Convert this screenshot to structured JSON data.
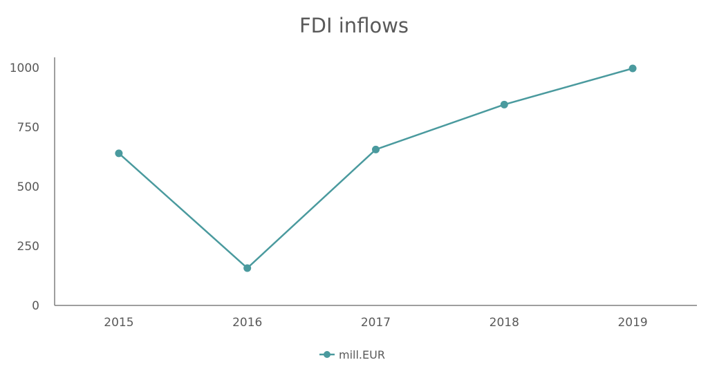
{
  "chart_data": {
    "type": "line",
    "title": "FDI inflows",
    "xlabel": "",
    "ylabel": "",
    "categories": [
      "2015",
      "2016",
      "2017",
      "2018",
      "2019"
    ],
    "series": [
      {
        "name": "mill.EUR",
        "values": [
          640,
          157,
          656,
          845,
          997
        ],
        "color": "#4A9A9E"
      }
    ],
    "ylim": [
      0,
      1000
    ],
    "yticks": [
      0,
      250,
      500,
      750,
      1000
    ],
    "grid": false,
    "legend_position": "bottom"
  }
}
